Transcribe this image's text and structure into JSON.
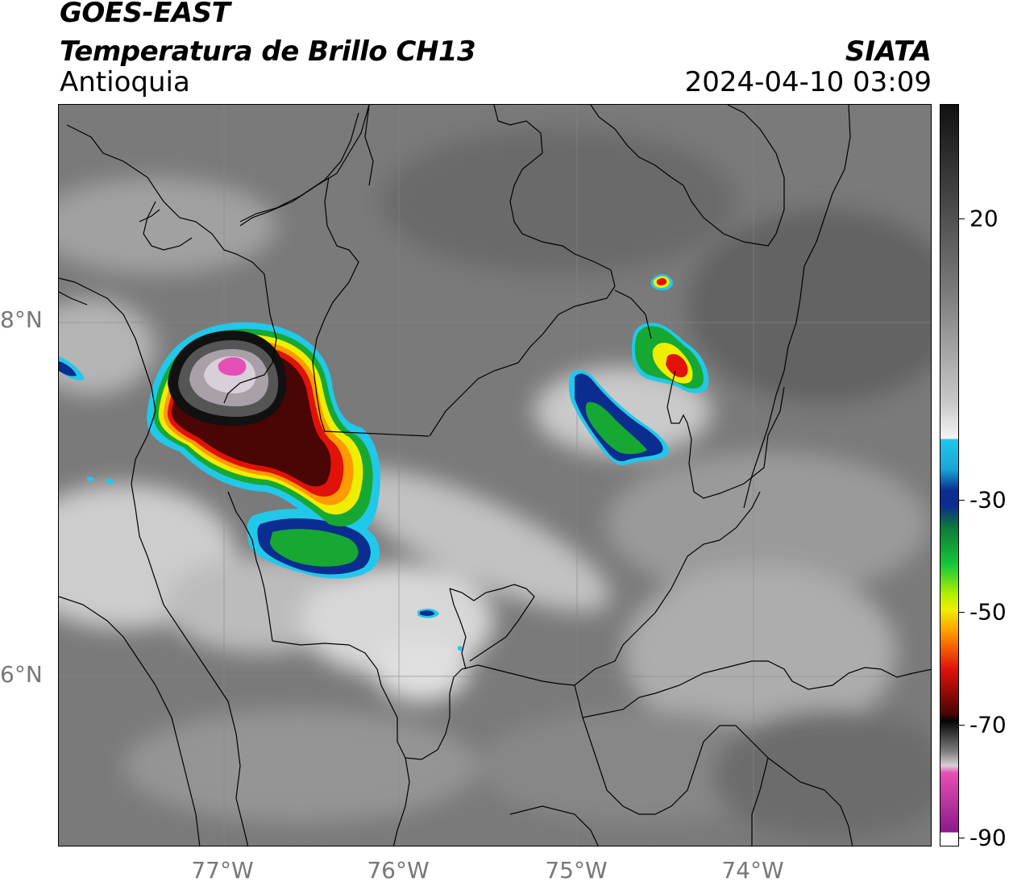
{
  "header": {
    "title_line1": "GOES-EAST",
    "title_line2": "Temperatura de Brillo CH13",
    "region": "Antioquia",
    "agency": "SIATA",
    "timestamp": "2024-04-10 03:09"
  },
  "map": {
    "lat_labels": [
      "8°N",
      "6°N"
    ],
    "lon_labels": [
      "77°W",
      "76°W",
      "75°W",
      "74°W"
    ],
    "gridlines": "on",
    "storm_features": [
      {
        "name": "large convective cell",
        "location": "northwest (Urabá / Chocó border)",
        "coldest_top_color": "magenta"
      },
      {
        "name": "cell",
        "location": "northeast (Santander region)",
        "coldest_top_color": "red"
      },
      {
        "name": "elongated cell",
        "location": "central-east",
        "coldest_top_color": "green"
      }
    ]
  },
  "colorbar": {
    "ticks": [
      "20",
      "-30",
      "-50",
      "-70",
      "-90"
    ],
    "colors": {
      "warm_top": "#111111",
      "gray_mid": "#7a7a7a",
      "white": "#f5f5f5",
      "cyan": "#22c8ea",
      "blue": "#0a2d8f",
      "green": "#16a832",
      "yellow": "#f0ee00",
      "orange": "#ff9a00",
      "red": "#e0120a",
      "darkred": "#4a0505",
      "black": "#050505",
      "pink": "#e64fb3",
      "purple": "#8a1a8a"
    }
  }
}
